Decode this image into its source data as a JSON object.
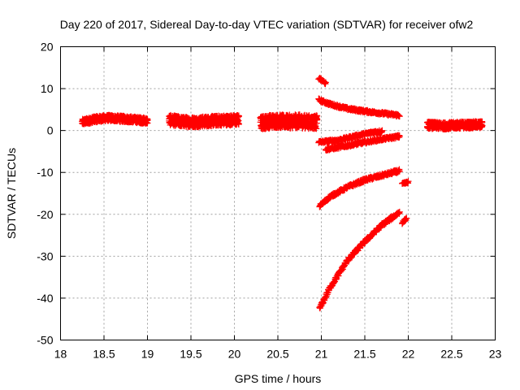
{
  "chart_data": {
    "type": "scatter",
    "title": "Day 220 of 2017, Sidereal Day-to-day VTEC variation (SDTVAR) for receiver ofw2",
    "xlabel": "GPS time / hours",
    "ylabel": "SDTVAR / TECUs",
    "xlim": [
      18,
      23
    ],
    "ylim": [
      -50,
      20
    ],
    "xticks": [
      18,
      18.5,
      19,
      19.5,
      20,
      20.5,
      21,
      21.5,
      22,
      22.5,
      23
    ],
    "xtick_labels": [
      "18",
      "18.5",
      "19",
      "19.5",
      "20",
      "20.5",
      "21",
      "21.5",
      "22",
      "22.5",
      "23"
    ],
    "yticks": [
      20,
      10,
      0,
      -10,
      -20,
      -30,
      -40,
      -50
    ],
    "ytick_labels": [
      "20",
      "10",
      "0",
      "-10",
      "-20",
      "-30",
      "-40",
      "-50"
    ],
    "grid": true,
    "legend": "none",
    "marker": "plus",
    "color": "#ff0000",
    "series": [
      {
        "x": [
          18.25,
          18.4,
          18.55,
          18.7,
          18.85,
          19.0
        ],
        "y": [
          2.0,
          2.7,
          3.0,
          2.8,
          2.6,
          2.3
        ],
        "spread": 1.4
      },
      {
        "x": [
          19.25,
          19.4,
          19.55,
          19.7,
          19.85,
          20.05
        ],
        "y": [
          2.5,
          2.1,
          2.0,
          2.2,
          2.4,
          2.5
        ],
        "spread": 2.4
      },
      {
        "x": [
          20.3,
          20.45,
          20.6,
          20.75,
          20.9,
          20.95
        ],
        "y": [
          1.8,
          2.3,
          2.1,
          2.2,
          2.0,
          2.0
        ],
        "spread": 3.2
      },
      {
        "x": [
          20.97,
          21.05
        ],
        "y": [
          12.5,
          11.3
        ],
        "spread": 0.6
      },
      {
        "x": [
          20.97,
          21.1,
          21.3,
          21.5,
          21.7,
          21.9
        ],
        "y": [
          7.3,
          6.3,
          5.2,
          4.6,
          4.1,
          3.6
        ],
        "spread": 0.6
      },
      {
        "x": [
          20.97,
          21.2,
          21.4,
          21.6,
          21.7
        ],
        "y": [
          -2.8,
          -2.3,
          -1.3,
          -0.4,
          -0.2
        ],
        "spread": 0.6
      },
      {
        "x": [
          21.05,
          21.25,
          21.45,
          21.65,
          21.9
        ],
        "y": [
          -4.5,
          -3.8,
          -3.0,
          -2.2,
          -1.4
        ],
        "spread": 0.6
      },
      {
        "x": [
          20.98,
          21.1,
          21.3,
          21.5,
          21.7,
          21.9
        ],
        "y": [
          -18.0,
          -15.8,
          -13.5,
          -11.8,
          -10.7,
          -9.6
        ],
        "spread": 0.7
      },
      {
        "x": [
          21.93,
          22.0
        ],
        "y": [
          -12.8,
          -12.3
        ],
        "spread": 0.5
      },
      {
        "x": [
          20.98,
          21.1,
          21.3,
          21.5,
          21.7,
          21.9
        ],
        "y": [
          -42.5,
          -37.5,
          -31.0,
          -26.5,
          -22.5,
          -19.5
        ],
        "spread": 0.8
      },
      {
        "x": [
          21.93,
          21.98
        ],
        "y": [
          -22.0,
          -21.0
        ],
        "spread": 0.5
      },
      {
        "x": [
          22.22,
          22.4,
          22.6,
          22.85
        ],
        "y": [
          1.3,
          1.1,
          1.3,
          1.4
        ],
        "spread": 1.6
      }
    ]
  }
}
